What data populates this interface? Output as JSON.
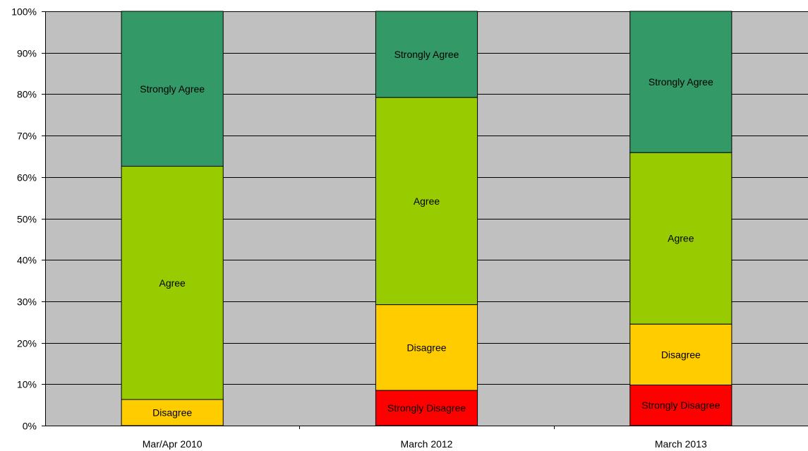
{
  "chart_data": {
    "type": "bar",
    "stacked": true,
    "categories": [
      "Mar/Apr 2010",
      "March 2012",
      "March 2013"
    ],
    "series": [
      {
        "name": "Strongly Disagree",
        "values": [
          0,
          8.5,
          9.8
        ]
      },
      {
        "name": "Disagree",
        "values": [
          6.3,
          20.7,
          14.7
        ]
      },
      {
        "name": "Agree",
        "values": [
          56.3,
          50.0,
          41.4
        ]
      },
      {
        "name": "Strongly Agree",
        "values": [
          37.4,
          20.8,
          34.1
        ]
      }
    ],
    "ylim": [
      0,
      100
    ],
    "yticks": [
      "0%",
      "10%",
      "20%",
      "30%",
      "40%",
      "50%",
      "60%",
      "70%",
      "80%",
      "90%",
      "100%"
    ],
    "grid": true,
    "colors": {
      "Strongly Disagree": "#ff0000",
      "Disagree": "#ffcc00",
      "Agree": "#99cc00",
      "Strongly Agree": "#339966",
      "plot_background": "#c0c0c0"
    }
  }
}
